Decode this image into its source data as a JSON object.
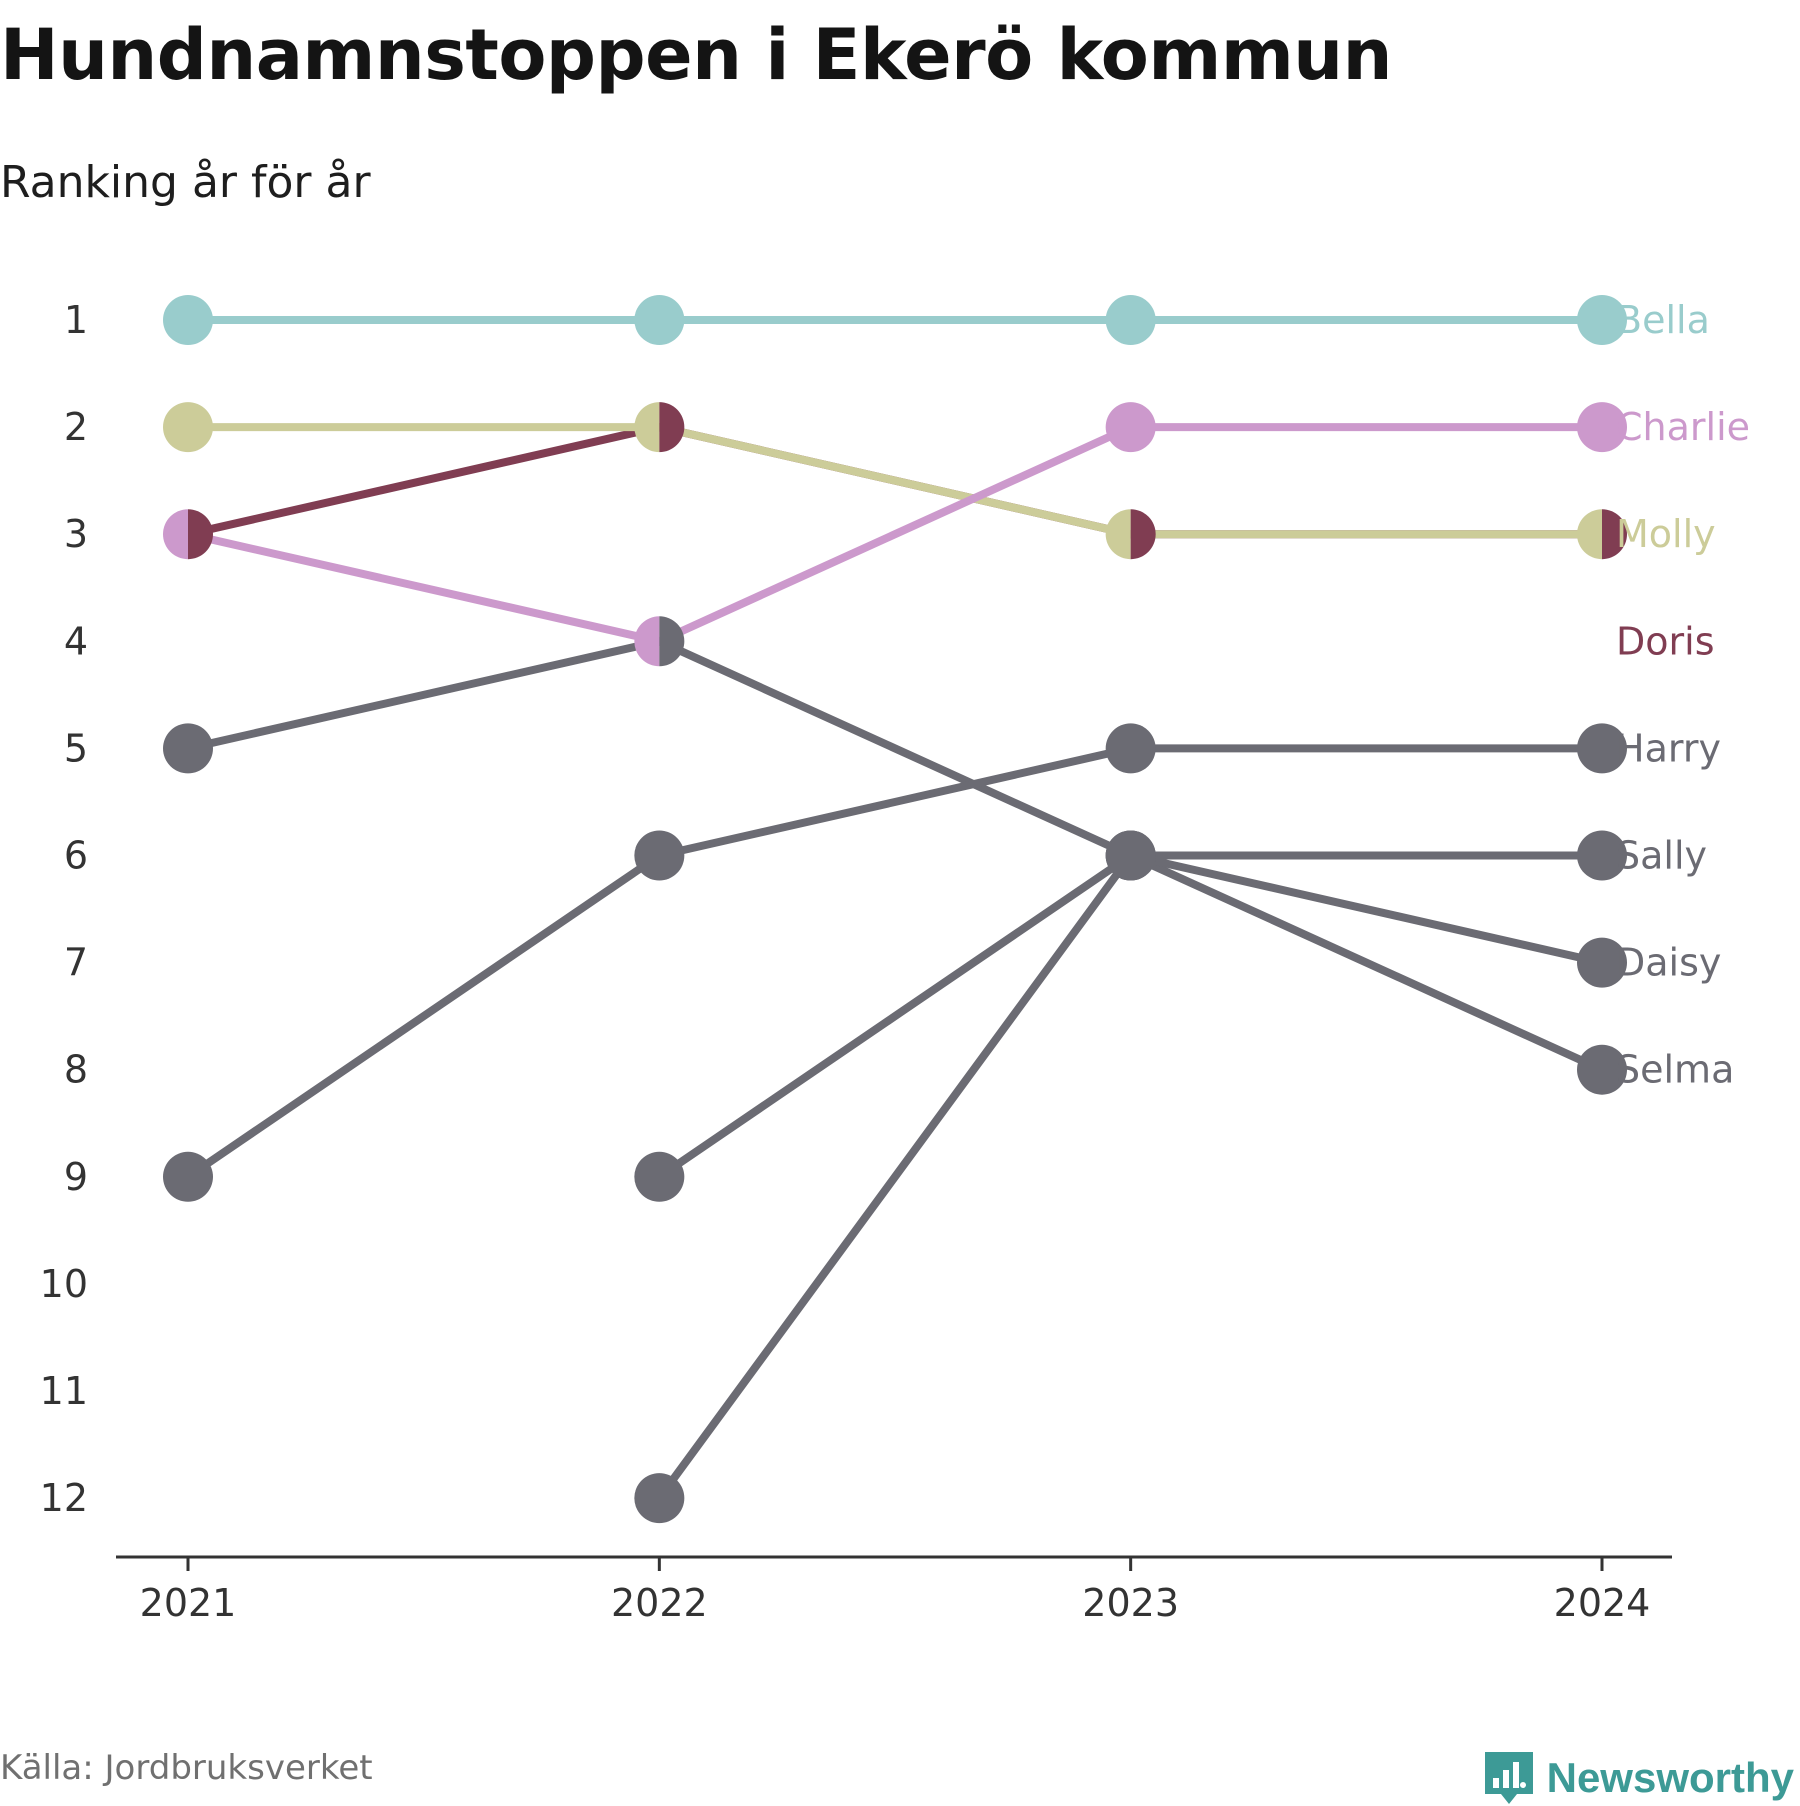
{
  "header": {
    "title": "Hundnamnstoppen i Ekerö kommun",
    "subtitle": "Ranking år för år"
  },
  "footer": {
    "source": "Källa: Jordbruksverket",
    "brand": "Newsworthy",
    "brand_icon": "bar-chart-speech-bubble-icon"
  },
  "colors": {
    "accent": "#3d9a96",
    "axis": "#333333",
    "tick_text": "#333333"
  },
  "chart_data": {
    "type": "line",
    "title": "Hundnamnstoppen i Ekerö kommun",
    "subtitle": "Ranking år för år",
    "x": [
      "2021",
      "2022",
      "2023",
      "2024"
    ],
    "y_ticks": [
      1,
      2,
      3,
      4,
      5,
      6,
      7,
      8,
      9,
      10,
      11,
      12
    ],
    "ylim": [
      1,
      12
    ],
    "y_reversed": true,
    "grid": false,
    "legend": "direct labels at right end",
    "series": [
      {
        "name": "Bella",
        "color": "#99cccc",
        "ranks": [
          1,
          1,
          1,
          1
        ]
      },
      {
        "name": "Charlie",
        "color": "#cc99cc",
        "ranks": [
          3,
          4,
          2,
          2
        ]
      },
      {
        "name": "Molly",
        "color": "#cccc99",
        "ranks": [
          2,
          2,
          3,
          3
        ]
      },
      {
        "name": "Doris",
        "color": "#803d52",
        "ranks": [
          3,
          2,
          3,
          3
        ]
      },
      {
        "name": "Harry",
        "color": "#6b6b73",
        "ranks": [
          9,
          6,
          5,
          5
        ]
      },
      {
        "name": "Sally",
        "color": "#6b6b73",
        "ranks": [
          null,
          9,
          6,
          6
        ]
      },
      {
        "name": "Daisy",
        "color": "#6b6b73",
        "ranks": [
          5,
          4,
          6,
          7
        ]
      },
      {
        "name": "Selma",
        "color": "#6b6b73",
        "ranks": [
          null,
          12,
          6,
          8
        ]
      }
    ],
    "labels": [
      {
        "name": "Bella",
        "rank": 1,
        "color": "#99cccc"
      },
      {
        "name": "Charlie",
        "rank": 2,
        "color": "#cc99cc"
      },
      {
        "name": "Molly",
        "rank": 3,
        "color": "#cccc99"
      },
      {
        "name": "Doris",
        "rank": 4,
        "color": "#803d52"
      },
      {
        "name": "Harry",
        "rank": 5,
        "color": "#6b6b73"
      },
      {
        "name": "Sally",
        "rank": 6,
        "color": "#6b6b73"
      },
      {
        "name": "Daisy",
        "rank": 7,
        "color": "#6b6b73"
      },
      {
        "name": "Selma",
        "rank": 8,
        "color": "#6b6b73"
      }
    ]
  }
}
